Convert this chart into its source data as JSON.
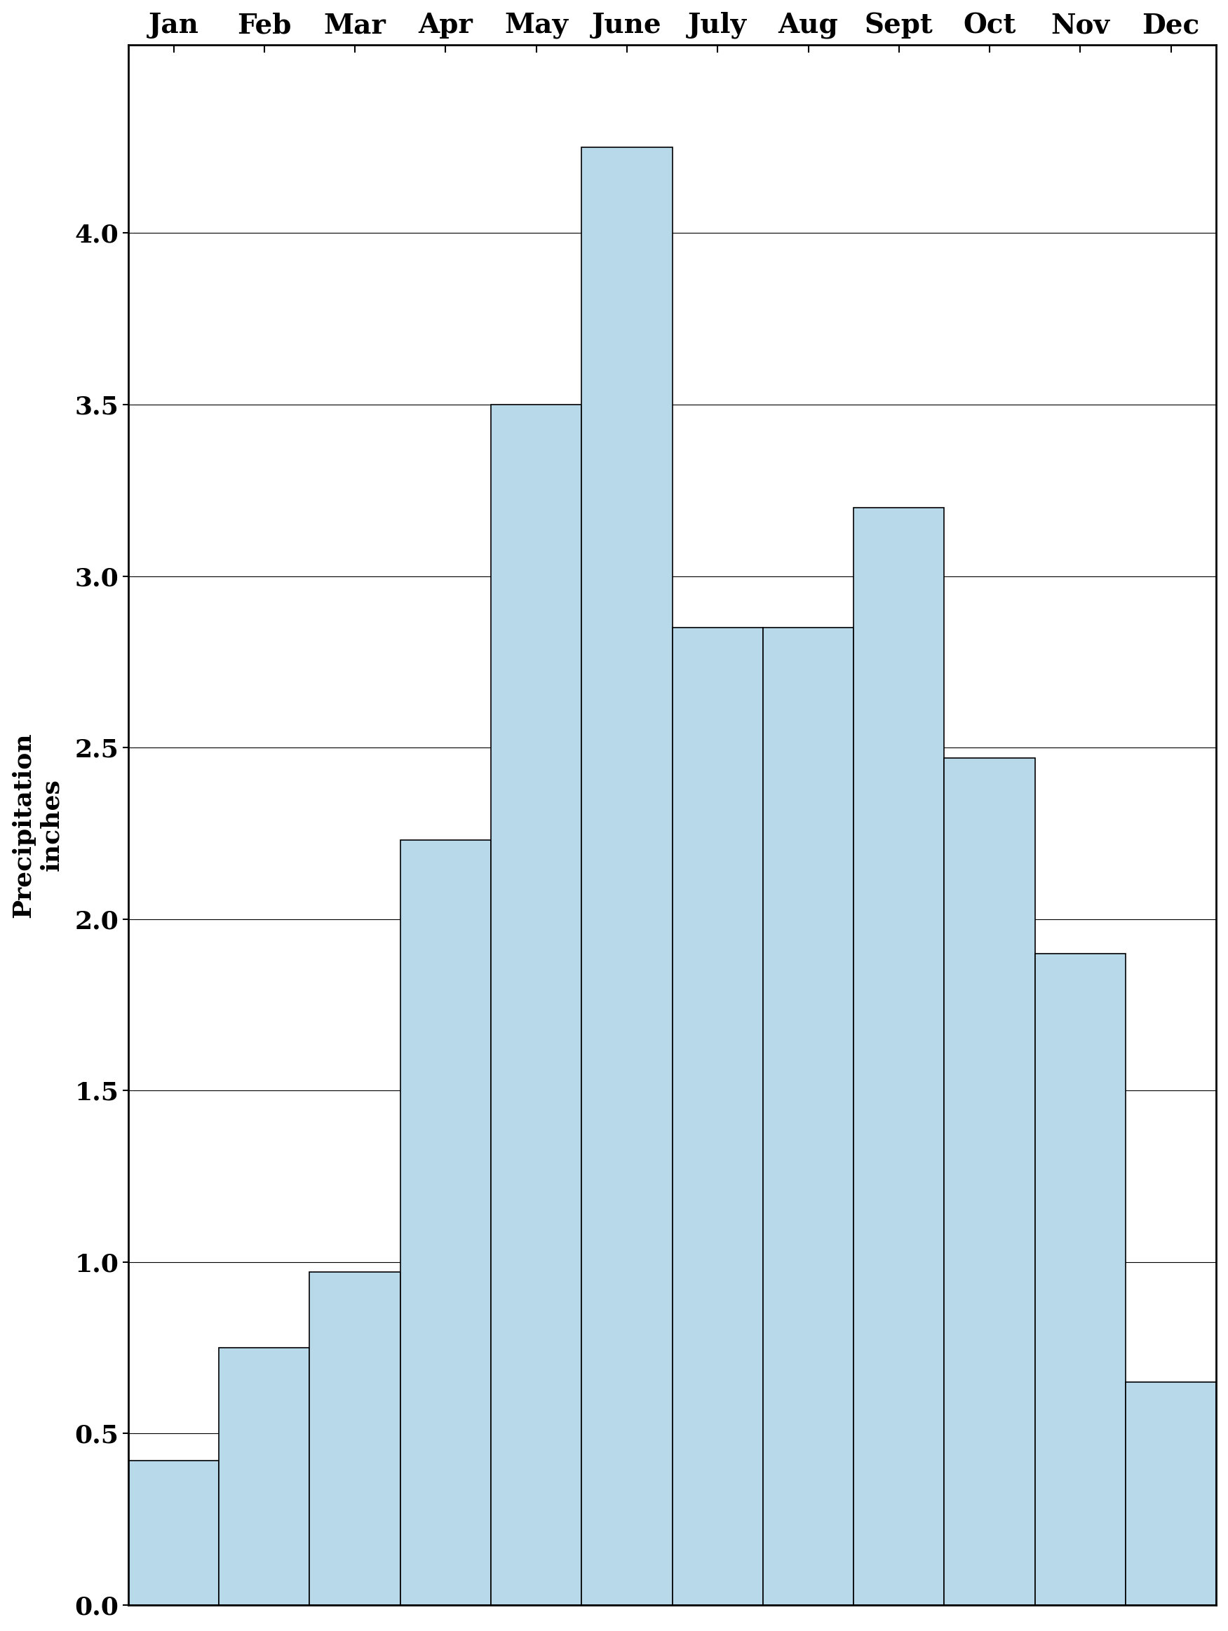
{
  "months": [
    "Jan",
    "Feb",
    "Mar",
    "Apr",
    "May",
    "June",
    "July",
    "Aug",
    "Sept",
    "Oct",
    "Nov",
    "Dec"
  ],
  "values": [
    0.42,
    0.75,
    0.97,
    2.23,
    3.5,
    4.25,
    2.85,
    2.85,
    3.2,
    2.47,
    1.9,
    0.65
  ],
  "bar_color": "#b8d9ea",
  "bar_edgecolor": "#000000",
  "ylabel_line1": "Precipitation",
  "ylabel_line2": "inches",
  "ylim": [
    0.0,
    4.55
  ],
  "yticks": [
    0.0,
    0.5,
    1.0,
    1.5,
    2.0,
    2.5,
    3.0,
    3.5,
    4.0
  ],
  "background_color": "#ffffff",
  "tick_fontsize": 26,
  "xlabel_fontsize": 28,
  "ylabel_fontsize": 26,
  "bar_linewidth": 1.2,
  "grid_linewidth": 0.8,
  "spine_linewidth": 2.0
}
